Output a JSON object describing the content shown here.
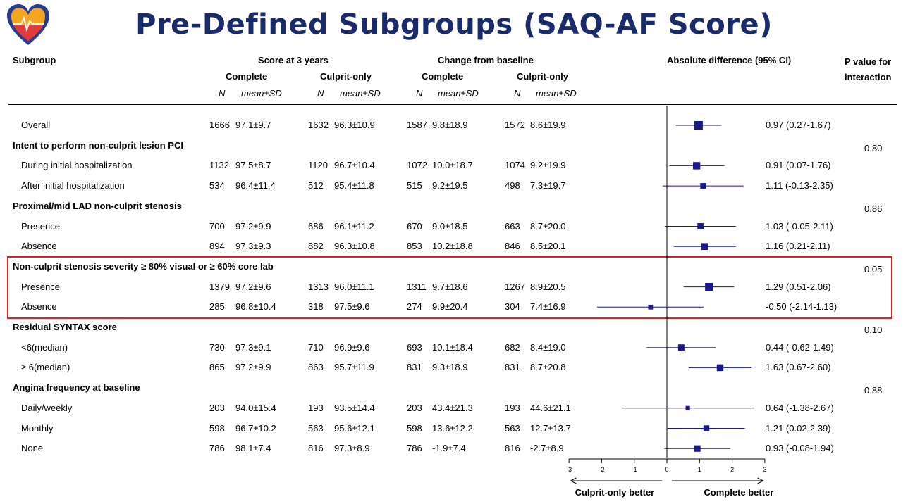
{
  "title": "Pre-Defined Subgroups (SAQ-AF Score)",
  "headers": {
    "subgroup": "Subgroup",
    "score3y": "Score at 3 years",
    "change": "Change from baseline",
    "complete": "Complete",
    "culprit": "Culprit-only",
    "n": "N",
    "mean": "mean±SD",
    "absdiff": "Absolute difference (95% CI)",
    "pval1": "P value for",
    "pval2": "interaction"
  },
  "rows": [
    {
      "label": "Overall",
      "group": false,
      "n1": "1666",
      "m1": "97.1±9.7",
      "n2": "1632",
      "m2": "96.3±10.9",
      "n3": "1587",
      "m3": "9.8±18.9",
      "n4": "1572",
      "m4": "8.6±19.9",
      "ci": "0.97 (0.27-1.67)",
      "p": ""
    },
    {
      "label": "Intent to perform non-culprit lesion PCI",
      "group": true,
      "p": "0.80"
    },
    {
      "label": "During initial hospitalization",
      "group": false,
      "n1": "1132",
      "m1": "97.5±8.7",
      "n2": "1120",
      "m2": "96.7±10.4",
      "n3": "1072",
      "m3": "10.0±18.7",
      "n4": "1074",
      "m4": "9.2±19.9",
      "ci": "0.91 (0.07-1.76)",
      "p": ""
    },
    {
      "label": "After initial hospitalization",
      "group": false,
      "n1": "534",
      "m1": "96.4±11.4",
      "n2": "512",
      "m2": "95.4±11.8",
      "n3": "515",
      "m3": "9.2±19.5",
      "n4": "498",
      "m4": "7.3±19.7",
      "ci": "1.11 (-0.13-2.35)",
      "p": ""
    },
    {
      "label": "Proximal/mid LAD non-culprit stenosis",
      "group": true,
      "p": "0.86"
    },
    {
      "label": "Presence",
      "group": false,
      "n1": "700",
      "m1": "97.2±9.9",
      "n2": "686",
      "m2": "96.1±11.2",
      "n3": "670",
      "m3": "9.0±18.5",
      "n4": "663",
      "m4": "8.7±20.0",
      "ci": "1.03 (-0.05-2.11)",
      "p": ""
    },
    {
      "label": "Absence",
      "group": false,
      "n1": "894",
      "m1": "97.3±9.3",
      "n2": "882",
      "m2": "96.3±10.8",
      "n3": "853",
      "m3": "10.2±18.8",
      "n4": "846",
      "m4": "8.5±20.1",
      "ci": "1.16 (0.21-2.11)",
      "p": ""
    },
    {
      "label": "Non-culprit stenosis severity ≥ 80% visual or ≥ 60% core lab",
      "group": true,
      "p": "0.05"
    },
    {
      "label": "Presence",
      "group": false,
      "n1": "1379",
      "m1": "97.2±9.6",
      "n2": "1313",
      "m2": "96.0±11.1",
      "n3": "1311",
      "m3": "9.7±18.6",
      "n4": "1267",
      "m4": "8.9±20.5",
      "ci": "1.29 (0.51-2.06)",
      "p": ""
    },
    {
      "label": "Absence",
      "group": false,
      "n1": "285",
      "m1": "96.8±10.4",
      "n2": "318",
      "m2": "97.5±9.6",
      "n3": "274",
      "m3": "9.9±20.4",
      "n4": "304",
      "m4": "7.4±16.9",
      "ci": "-0.50 (-2.14-1.13)",
      "p": ""
    },
    {
      "label": "Residual SYNTAX score",
      "group": true,
      "p": "0.10"
    },
    {
      "label": "<6(median)",
      "group": false,
      "n1": "730",
      "m1": "97.3±9.1",
      "n2": "710",
      "m2": "96.9±9.6",
      "n3": "693",
      "m3": "10.1±18.4",
      "n4": "682",
      "m4": "8.4±19.0",
      "ci": "0.44 (-0.62-1.49)",
      "p": ""
    },
    {
      "label": "≥ 6(median)",
      "group": false,
      "n1": "865",
      "m1": "97.2±9.9",
      "n2": "863",
      "m2": "95.7±11.9",
      "n3": "831",
      "m3": "9.3±18.9",
      "n4": "831",
      "m4": "8.7±20.8",
      "ci": "1.63 (0.67-2.60)",
      "p": ""
    },
    {
      "label": "Angina frequency at baseline",
      "group": true,
      "p": "0.88"
    },
    {
      "label": "Daily/weekly",
      "group": false,
      "n1": "203",
      "m1": "94.0±15.4",
      "n2": "193",
      "m2": "93.5±14.4",
      "n3": "203",
      "m3": "43.4±21.3",
      "n4": "193",
      "m4": "44.6±21.1",
      "ci": "0.64 (-1.38-2.67)",
      "p": ""
    },
    {
      "label": "Monthly",
      "group": false,
      "n1": "598",
      "m1": "96.7±10.2",
      "n2": "563",
      "m2": "95.6±12.1",
      "n3": "598",
      "m3": "13.6±12.2",
      "n4": "563",
      "m4": "12.7±13.7",
      "ci": "1.21 (0.02-2.39)",
      "p": ""
    },
    {
      "label": "None",
      "group": false,
      "n1": "786",
      "m1": "98.1±7.4",
      "n2": "816",
      "m2": "97.3±8.9",
      "n3": "786",
      "m3": "-1.9±7.4",
      "n4": "816",
      "m4": "-2.7±8.9",
      "ci": "0.93 (-0.08-1.94)",
      "p": ""
    }
  ],
  "chart_data": {
    "type": "scatter",
    "xlim": [
      -3,
      3
    ],
    "ticks": [
      "-3",
      "-2",
      "-1",
      "0",
      "1",
      "2",
      "3"
    ],
    "left_label": "Culprit-only better",
    "right_label": "Complete better",
    "colors": {
      "marker": "#1a1a8c",
      "line": "#1a1a8c",
      "highlight": "#e02020",
      "title": "#1a2b6b"
    },
    "points": [
      {
        "row": 0,
        "est": 0.97,
        "lo": 0.27,
        "hi": 1.67,
        "weight": 1666
      },
      {
        "row": 2,
        "est": 0.91,
        "lo": 0.07,
        "hi": 1.76,
        "weight": 1132
      },
      {
        "row": 3,
        "est": 1.11,
        "lo": -0.13,
        "hi": 2.35,
        "weight": 534
      },
      {
        "row": 5,
        "est": 1.03,
        "lo": -0.05,
        "hi": 2.11,
        "weight": 700
      },
      {
        "row": 6,
        "est": 1.16,
        "lo": 0.21,
        "hi": 2.11,
        "weight": 894
      },
      {
        "row": 8,
        "est": 1.29,
        "lo": 0.51,
        "hi": 2.06,
        "weight": 1379
      },
      {
        "row": 9,
        "est": -0.5,
        "lo": -2.14,
        "hi": 1.13,
        "weight": 285
      },
      {
        "row": 11,
        "est": 0.44,
        "lo": -0.62,
        "hi": 1.49,
        "weight": 730
      },
      {
        "row": 12,
        "est": 1.63,
        "lo": 0.67,
        "hi": 2.6,
        "weight": 865
      },
      {
        "row": 14,
        "est": 0.64,
        "lo": -1.38,
        "hi": 2.67,
        "weight": 203
      },
      {
        "row": 15,
        "est": 1.21,
        "lo": 0.02,
        "hi": 2.39,
        "weight": 598
      },
      {
        "row": 16,
        "est": 0.93,
        "lo": -0.08,
        "hi": 1.94,
        "weight": 786
      }
    ]
  }
}
